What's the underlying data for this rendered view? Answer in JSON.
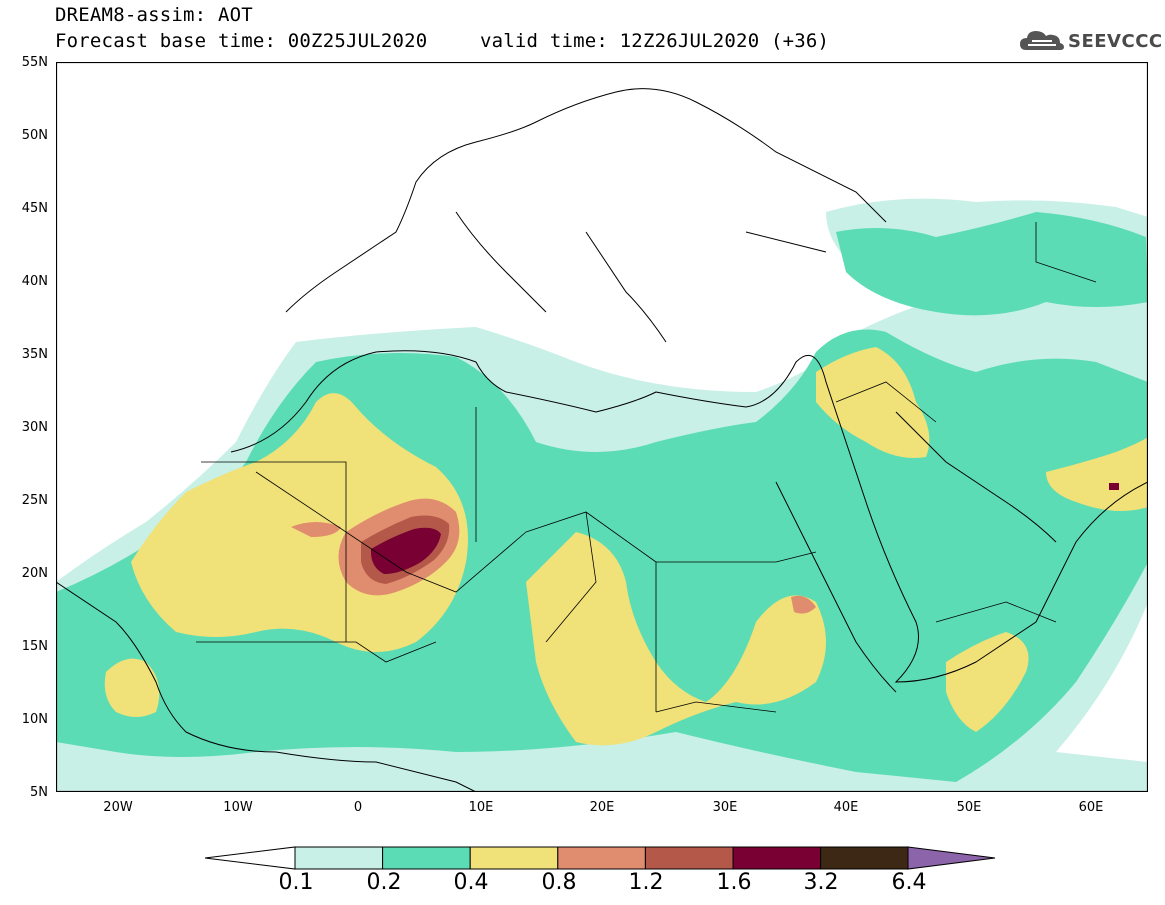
{
  "header": {
    "title": "DREAM8-assim: AOT",
    "base_time": "Forecast base time: 00Z25JUL2020",
    "valid_time": "valid time: 12Z26JUL2020 (+36)"
  },
  "logo": {
    "text": "SEEVCCC",
    "icon": "cloud-icon"
  },
  "axes": {
    "lat_labels": [
      "55N",
      "50N",
      "45N",
      "40N",
      "35N",
      "30N",
      "25N",
      "20N",
      "15N",
      "10N",
      "5N"
    ],
    "lon_labels": [
      "20W",
      "10W",
      "0",
      "10E",
      "20E",
      "30E",
      "40E",
      "50E",
      "60E"
    ]
  },
  "colorbar": {
    "labels": [
      "0.1",
      "0.2",
      "0.4",
      "0.8",
      "1.2",
      "1.6",
      "3.2",
      "6.4"
    ],
    "colors": [
      "#c8f0e6",
      "#5cdcb4",
      "#f0e178",
      "#e08c6e",
      "#b4584a",
      "#780032",
      "#3c2814",
      "#8c64aa"
    ]
  }
}
